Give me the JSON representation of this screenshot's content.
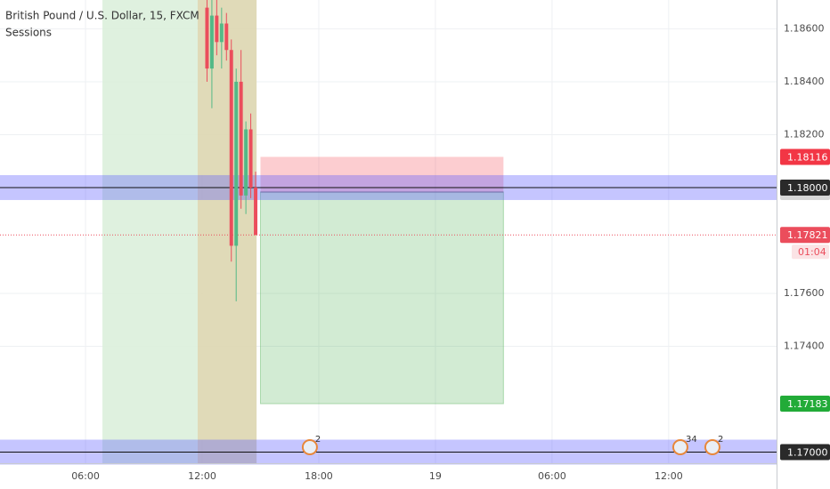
{
  "chart_data": {
    "type": "candlestick",
    "title": "British Pound / U.S. Dollar, 15, FXCM",
    "indicator": "Sessions",
    "xlim": [
      1.6,
      41.55
    ],
    "ylim": [
      1.16958,
      1.18709
    ],
    "xticks": [
      {
        "value": 6,
        "label": "06:00"
      },
      {
        "value": 12,
        "label": "12:00"
      },
      {
        "value": 18,
        "label": "18:00"
      },
      {
        "value": 24,
        "label": "19"
      },
      {
        "value": 30,
        "label": "06:00"
      },
      {
        "value": 36,
        "label": "12:00"
      }
    ],
    "yticks": [
      {
        "value": 1.186,
        "label": "1.18600"
      },
      {
        "value": 1.184,
        "label": "1.18400"
      },
      {
        "value": 1.182,
        "label": "1.18200"
      },
      {
        "value": 1.176,
        "label": "1.17600"
      },
      {
        "value": 1.174,
        "label": "1.17400"
      }
    ],
    "grid": true,
    "up_color": "#53b987",
    "down_color": "#eb4d5c",
    "candles": {
      "x": [
        12.25,
        12.5,
        12.75,
        13.0,
        13.25,
        13.5,
        13.75,
        14.0,
        14.25,
        14.5,
        14.75
      ],
      "open": [
        1.1868,
        1.1845,
        1.1865,
        1.1855,
        1.1862,
        1.1852,
        1.1778,
        1.184,
        1.1797,
        1.1822,
        1.18
      ],
      "high": [
        1.1871,
        1.1871,
        1.1871,
        1.1868,
        1.1866,
        1.1856,
        1.1845,
        1.1852,
        1.1825,
        1.1828,
        1.1806
      ],
      "low": [
        1.184,
        1.183,
        1.185,
        1.1845,
        1.1848,
        1.1772,
        1.1757,
        1.1792,
        1.179,
        1.1796,
        1.1782
      ],
      "close": [
        1.1845,
        1.1865,
        1.1855,
        1.1862,
        1.1852,
        1.1778,
        1.184,
        1.1797,
        1.1822,
        1.18,
        1.17821
      ]
    },
    "sessions": [
      {
        "start": 6.87,
        "end": 11.77,
        "color": "#dcefdc"
      },
      {
        "start": 11.77,
        "end": 14.8,
        "color": "#ddd6b0"
      }
    ],
    "levels": [
      {
        "value": 1.18,
        "label": "1.18000"
      },
      {
        "value": 1.17,
        "label": "1.17000"
      }
    ],
    "position": {
      "start": 15,
      "end": 27.5,
      "stop": 1.18116,
      "entry": 1.17983,
      "target": 1.17183
    },
    "last_price": 1.17821,
    "countdown": "01:04",
    "events": [
      {
        "x": 17.54,
        "label": "2"
      },
      {
        "x": 36.6,
        "label": "34"
      },
      {
        "x": 38.25,
        "label": "2"
      }
    ]
  }
}
